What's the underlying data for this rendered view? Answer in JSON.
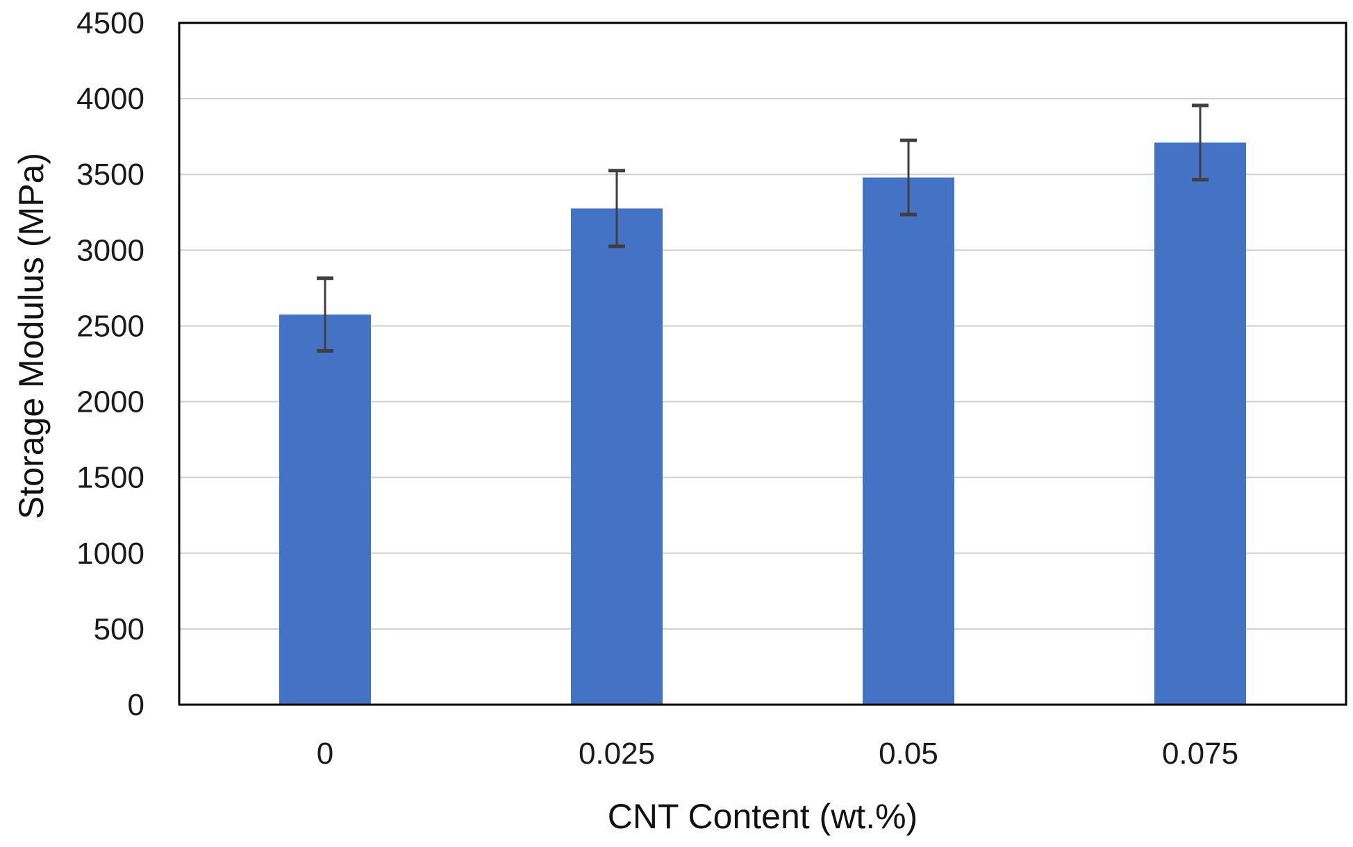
{
  "chart_data": {
    "type": "bar",
    "title": "",
    "xlabel": "CNT Content (wt.%)",
    "ylabel": "Storage Modulus (MPa)",
    "categories": [
      "0",
      "0.025",
      "0.05",
      "0.075"
    ],
    "series": [
      {
        "values": [
          2575,
          3275,
          3480,
          3710
        ],
        "error": [
          240,
          250,
          245,
          245
        ]
      }
    ],
    "ylim": [
      0,
      4500
    ],
    "yticks": [
      0,
      500,
      1000,
      1500,
      2000,
      2500,
      3000,
      3500,
      4000,
      4500
    ],
    "ytick_labels": [
      "0",
      "500",
      "1000",
      "1500",
      "2000",
      "2500",
      "3000",
      "3500",
      "4000",
      "4500"
    ],
    "grid": true,
    "legend": "none",
    "colors": {
      "bar": "#4472c4",
      "error_bar": "#3f3f3f",
      "grid": "#d0d0d0",
      "frame": "#000000"
    }
  }
}
